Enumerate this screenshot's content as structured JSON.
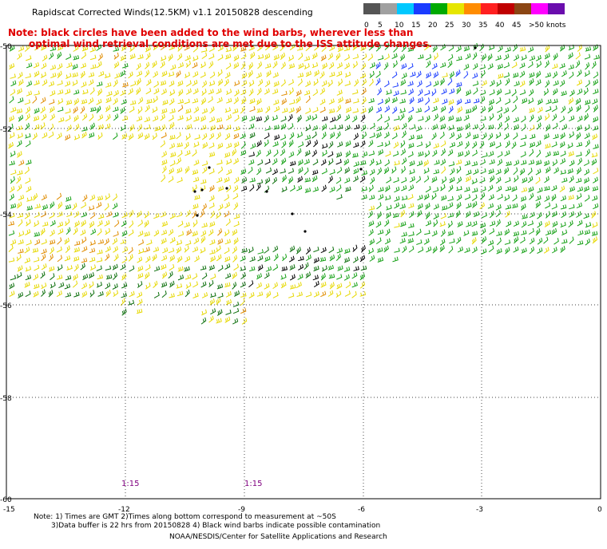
{
  "title": "Rapidscat Corrected Winds(12.5KM) v1.1 20150828 descending",
  "note_line1": "Note: black circles have been added to the wind barbs, wherever less than",
  "note_line2": "optimal wind retrieval conditions are met due to the ISS attitude changes.",
  "colorbar": {
    "labels": [
      "0",
      "5",
      "10",
      "15",
      "20",
      "25",
      "30",
      "35",
      "40",
      "45",
      ">50 knots"
    ],
    "colors": [
      "#555555",
      "#a0a0a0",
      "#00c8ff",
      "#1a3cff",
      "#00aa00",
      "#e6e600",
      "#ff8c00",
      "#ff2020",
      "#c00000",
      "#8b4513",
      "#ff00ff",
      "#6a0dad"
    ]
  },
  "axes": {
    "x_ticks": [
      "-15",
      "-12",
      "-9",
      "-6",
      "-3",
      "0"
    ],
    "y_ticks": [
      "-50",
      "-52",
      "-54",
      "-56",
      "-58",
      "-60"
    ]
  },
  "time_labels": [
    "1:15",
    "1:15"
  ],
  "footer": {
    "line1": "Note: 1) Times are GMT 2)Times along bottom correspond to measurement at ~50S",
    "line2": "3)Data buffer is 22 hrs from 20150828 4) Black wind barbs indicate possible contamination",
    "line3": "NOAA/NESDIS/Center for Satellite Applications and Research"
  }
}
